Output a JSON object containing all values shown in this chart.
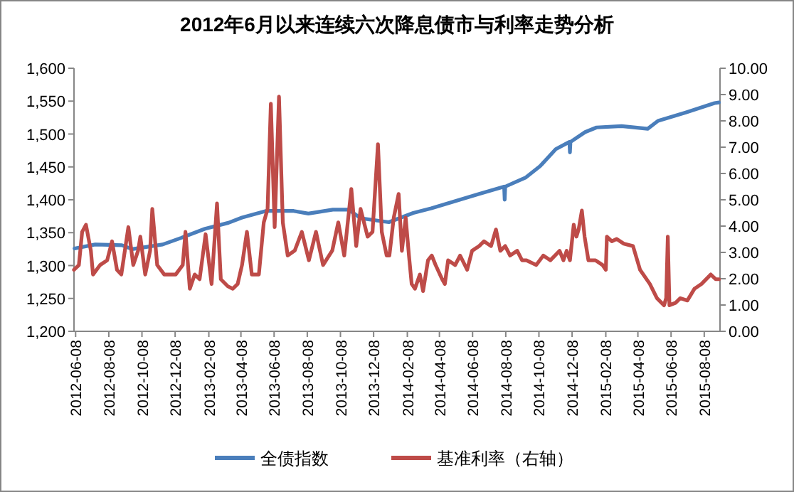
{
  "chart_data": {
    "type": "line",
    "title": "2012年6月以来连续六次降息债市与利率走势分析",
    "legend": "bottom",
    "grid": false,
    "line_style": "solid",
    "xlim": [
      "2012-06-05",
      "2015-09-06"
    ],
    "xticks": [
      "2012-06-08",
      "2012-08-08",
      "2012-10-08",
      "2012-12-08",
      "2013-02-08",
      "2013-04-08",
      "2013-06-08",
      "2013-08-08",
      "2013-10-08",
      "2013-12-08",
      "2014-02-08",
      "2014-04-08",
      "2014-06-08",
      "2014-08-08",
      "2014-10-08",
      "2014-12-08",
      "2015-02-08",
      "2015-04-08",
      "2015-06-08",
      "2015-08-08"
    ],
    "ylim": [
      1200,
      1600
    ],
    "yticks": [
      {
        "value": 1200,
        "label": "1,200"
      },
      {
        "value": 1250,
        "label": "1,250"
      },
      {
        "value": 1300,
        "label": "1,300"
      },
      {
        "value": 1350,
        "label": "1,350"
      },
      {
        "value": 1400,
        "label": "1,400"
      },
      {
        "value": 1450,
        "label": "1,450"
      },
      {
        "value": 1500,
        "label": "1,500"
      },
      {
        "value": 1550,
        "label": "1,550"
      },
      {
        "value": 1600,
        "label": "1,600"
      }
    ],
    "y2lim": [
      0,
      10
    ],
    "y2ticks": [
      {
        "value": 0,
        "label": "0.00"
      },
      {
        "value": 1,
        "label": "1.00"
      },
      {
        "value": 2,
        "label": "2.00"
      },
      {
        "value": 3,
        "label": "3.00"
      },
      {
        "value": 4,
        "label": "4.00"
      },
      {
        "value": 5,
        "label": "5.00"
      },
      {
        "value": 6,
        "label": "6.00"
      },
      {
        "value": 7,
        "label": "7.00"
      },
      {
        "value": 8,
        "label": "8.00"
      },
      {
        "value": 9,
        "label": "9.00"
      },
      {
        "value": 10,
        "label": "10.00"
      }
    ],
    "series": [
      {
        "name": "全债指数",
        "color": "#4a7ebb",
        "x": [
          "2012-06-06",
          "2012-07-14",
          "2012-09-01",
          "2012-09-20",
          "2012-11-15",
          "2012-12-19",
          "2013-02-01",
          "2013-03-16",
          "2013-04-10",
          "2013-05-24",
          "2013-07-14",
          "2013-08-10",
          "2013-09-24",
          "2013-10-23",
          "2013-11-14",
          "2014-01-05",
          "2014-02-19",
          "2014-03-24",
          "2014-06-20",
          "2014-08-05",
          "2014-08-06",
          "2014-08-07",
          "2014-09-14",
          "2014-10-10",
          "2014-11-08",
          "2014-12-03",
          "2014-12-04",
          "2014-12-05",
          "2015-01-01",
          "2015-01-22",
          "2015-03-09",
          "2015-04-26",
          "2015-05-15",
          "2015-07-06",
          "2015-08-27",
          "2015-09-04"
        ],
        "values": [
          1326,
          1332,
          1331,
          1325,
          1332,
          1342,
          1356,
          1365,
          1373,
          1383,
          1383,
          1379,
          1385,
          1385,
          1372,
          1366,
          1380,
          1387,
          1409,
          1420,
          1400,
          1420,
          1434,
          1451,
          1477,
          1488,
          1472,
          1488,
          1503,
          1510,
          1512,
          1508,
          1520,
          1533,
          1547,
          1548
        ]
      },
      {
        "name": "基准利率（右轴）",
        "color": "#be4b48",
        "axis": "y2",
        "x": [
          "2012-06-05",
          "2012-06-14",
          "2012-06-20",
          "2012-06-27",
          "2012-07-06",
          "2012-07-10",
          "2012-07-23",
          "2012-08-05",
          "2012-08-14",
          "2012-08-23",
          "2012-08-31",
          "2012-09-13",
          "2012-09-22",
          "2012-10-01",
          "2012-10-05",
          "2012-10-14",
          "2012-10-23",
          "2012-10-27",
          "2012-11-05",
          "2012-11-18",
          "2012-12-09",
          "2012-12-22",
          "2012-12-27",
          "2013-01-04",
          "2013-01-13",
          "2013-01-22",
          "2013-02-02",
          "2013-02-13",
          "2013-02-23",
          "2013-03-02",
          "2013-03-15",
          "2013-03-24",
          "2013-04-02",
          "2013-04-10",
          "2013-04-19",
          "2013-04-28",
          "2013-05-11",
          "2013-05-20",
          "2013-05-27",
          "2013-06-02",
          "2013-06-09",
          "2013-06-17",
          "2013-06-24",
          "2013-07-03",
          "2013-07-16",
          "2013-07-29",
          "2013-08-11",
          "2013-08-24",
          "2013-09-06",
          "2013-09-23",
          "2013-10-04",
          "2013-10-15",
          "2013-10-28",
          "2013-11-06",
          "2013-11-14",
          "2013-11-27",
          "2013-12-06",
          "2013-12-16",
          "2013-12-23",
          "2014-01-01",
          "2014-01-06",
          "2014-01-14",
          "2014-01-23",
          "2014-01-29",
          "2014-02-05",
          "2014-02-11",
          "2014-02-16",
          "2014-02-22",
          "2014-03-03",
          "2014-03-09",
          "2014-03-18",
          "2014-03-25",
          "2014-04-01",
          "2014-04-13",
          "2014-04-18",
          "2014-04-24",
          "2014-05-07",
          "2014-05-16",
          "2014-05-29",
          "2014-06-07",
          "2014-06-20",
          "2014-06-29",
          "2014-07-12",
          "2014-07-21",
          "2014-07-29",
          "2014-08-07",
          "2014-08-16",
          "2014-08-29",
          "2014-09-07",
          "2014-09-15",
          "2014-10-03",
          "2014-10-16",
          "2014-10-29",
          "2014-11-15",
          "2014-11-22",
          "2014-11-28",
          "2014-12-04",
          "2014-12-11",
          "2014-12-16",
          "2014-12-20",
          "2014-12-26",
          "2014-12-31",
          "2015-01-07",
          "2015-01-20",
          "2015-02-02",
          "2015-02-08",
          "2015-02-10",
          "2015-02-19",
          "2015-02-28",
          "2015-03-13",
          "2015-03-30",
          "2015-04-12",
          "2015-04-30",
          "2015-05-13",
          "2015-05-26",
          "2015-05-30",
          "2015-06-02",
          "2015-06-05",
          "2015-06-16",
          "2015-06-25",
          "2015-07-08",
          "2015-07-21",
          "2015-08-03",
          "2015-08-20",
          "2015-08-29",
          "2015-09-04"
        ],
        "values": [
          2.34,
          2.52,
          3.78,
          4.05,
          3.07,
          2.16,
          2.52,
          2.7,
          3.42,
          2.34,
          2.16,
          3.96,
          2.52,
          3.07,
          3.6,
          2.16,
          3.07,
          4.65,
          2.52,
          2.16,
          2.16,
          2.52,
          3.78,
          1.62,
          2.16,
          1.98,
          3.69,
          1.8,
          4.86,
          1.98,
          1.71,
          1.62,
          1.8,
          2.52,
          3.78,
          2.16,
          2.16,
          4.14,
          4.65,
          8.65,
          3.96,
          8.92,
          4.14,
          2.88,
          3.07,
          3.78,
          2.7,
          3.78,
          2.52,
          3.07,
          4.14,
          2.88,
          5.41,
          3.24,
          4.65,
          3.6,
          3.78,
          7.11,
          3.78,
          2.88,
          2.88,
          4.32,
          5.22,
          3.06,
          4.32,
          2.88,
          1.8,
          1.62,
          2.16,
          1.53,
          2.7,
          2.88,
          2.52,
          1.98,
          1.8,
          2.7,
          2.52,
          2.88,
          2.34,
          3.06,
          3.24,
          3.42,
          3.24,
          3.87,
          3.06,
          3.24,
          2.88,
          3.06,
          2.7,
          2.7,
          2.52,
          2.88,
          2.7,
          3.06,
          2.7,
          3.06,
          2.7,
          4.05,
          3.6,
          3.87,
          4.59,
          3.6,
          2.7,
          2.7,
          2.52,
          2.34,
          3.6,
          3.42,
          3.51,
          3.33,
          3.24,
          2.34,
          1.8,
          1.26,
          0.99,
          1.26,
          3.6,
          0.99,
          1.08,
          1.26,
          1.17,
          1.62,
          1.8,
          2.16,
          1.98,
          1.98
        ]
      }
    ]
  }
}
